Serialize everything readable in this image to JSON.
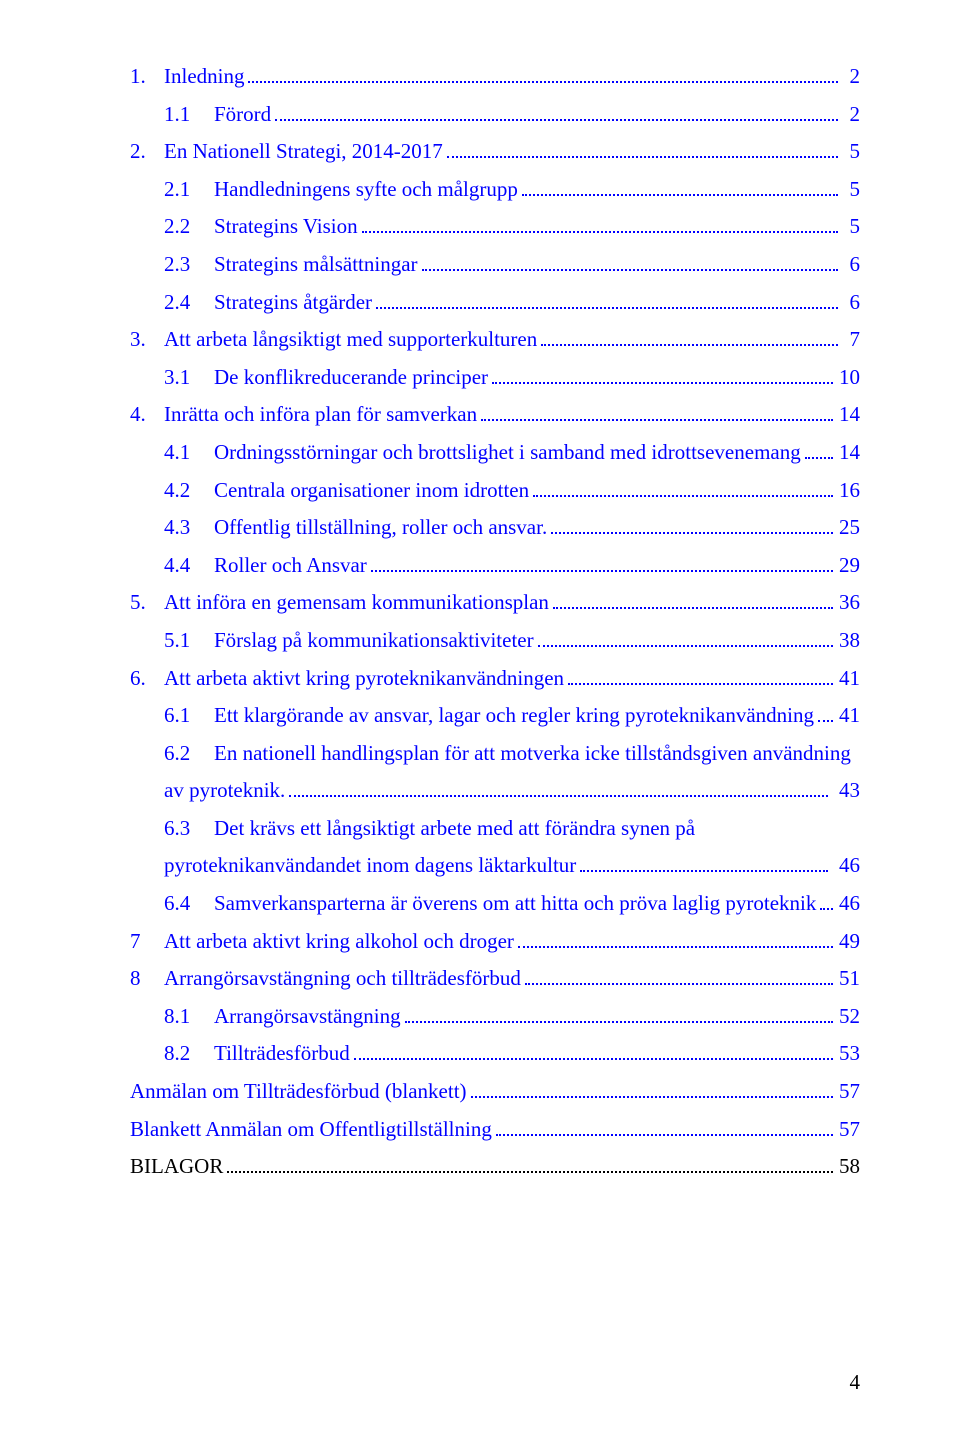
{
  "toc": [
    {
      "num": "1.",
      "label": "Inledning",
      "page": "2",
      "indent": 0,
      "link": true
    },
    {
      "num": "1.1",
      "label": "Förord",
      "page": "2",
      "indent": 1,
      "link": true
    },
    {
      "num": "2.",
      "label": "En Nationell Strategi, 2014-2017",
      "page": "5",
      "indent": 0,
      "link": true
    },
    {
      "num": "2.1",
      "label": "Handledningens syfte och målgrupp",
      "page": "5",
      "indent": 1,
      "link": true
    },
    {
      "num": "2.2",
      "label": "Strategins Vision",
      "page": "5",
      "indent": 1,
      "link": true
    },
    {
      "num": "2.3",
      "label": "Strategins målsättningar",
      "page": "6",
      "indent": 1,
      "link": true
    },
    {
      "num": "2.4",
      "label": "Strategins åtgärder",
      "page": "6",
      "indent": 1,
      "link": true
    },
    {
      "num": "3.",
      "label": "Att arbeta långsiktigt med supporterkulturen",
      "page": "7",
      "indent": 0,
      "link": true
    },
    {
      "num": "3.1",
      "label": "De konflikreducerande principer",
      "page": "10",
      "indent": 1,
      "link": true
    },
    {
      "num": "4.",
      "label": "Inrätta och införa plan för samverkan",
      "page": "14",
      "indent": 0,
      "link": true
    },
    {
      "num": "4.1",
      "label": "Ordningsstörningar och brottslighet i samband med idrottsevenemang",
      "page": "14",
      "indent": 1,
      "link": true
    },
    {
      "num": "4.2",
      "label": "Centrala organisationer inom idrotten",
      "page": "16",
      "indent": 1,
      "link": true
    },
    {
      "num": "4.3",
      "label": "Offentlig tillställning, roller och ansvar.",
      "page": "25",
      "indent": 1,
      "link": true
    },
    {
      "num": "4.4",
      "label": "Roller och Ansvar",
      "page": "29",
      "indent": 1,
      "link": true
    },
    {
      "num": "5.",
      "label": "Att införa en gemensam kommunikationsplan",
      "page": "36",
      "indent": 0,
      "link": true
    },
    {
      "num": "5.1",
      "label": "Förslag på kommunikationsaktiviteter",
      "page": "38",
      "indent": 1,
      "link": true
    },
    {
      "num": "6.",
      "label": "Att arbeta aktivt kring pyroteknikanvändningen",
      "page": "41",
      "indent": 0,
      "link": true
    },
    {
      "num": "6.1",
      "label": "Ett klargörande av ansvar, lagar och regler kring pyroteknikanvändning",
      "page": "41",
      "indent": 1,
      "link": true
    },
    {
      "num": "6.2",
      "label_line1": "En nationell handlingsplan för att motverka icke tillståndsgiven användning",
      "label_line2": "av pyroteknik.",
      "page": "43",
      "indent": 1,
      "link": true,
      "wrap": true
    },
    {
      "num": "6.3",
      "label_line1": "Det krävs ett långsiktigt arbete med att förändra synen på",
      "label_line2": "pyroteknikanvändandet inom dagens läktarkultur",
      "page": "46",
      "indent": 1,
      "link": true,
      "wrap": true
    },
    {
      "num": "6.4",
      "label": "Samverkansparterna är överens om att hitta och pröva laglig pyroteknik",
      "page": "46",
      "indent": 1,
      "link": true
    },
    {
      "num": "7",
      "label": "Att arbeta aktivt kring alkohol och droger",
      "page": "49",
      "indent": 0,
      "link": true
    },
    {
      "num": "8",
      "label": "Arrangörsavstängning och tillträdesförbud",
      "page": "51",
      "indent": 0,
      "link": true
    },
    {
      "num": "8.1",
      "label": "Arrangörsavstängning",
      "page": "52",
      "indent": 1,
      "link": true
    },
    {
      "num": "8.2",
      "label": "Tillträdesförbud",
      "page": "53",
      "indent": 1,
      "link": true
    },
    {
      "num": "",
      "label": "Anmälan om Tillträdesförbud (blankett)",
      "page": "57",
      "indent": -1,
      "link": true
    },
    {
      "num": "",
      "label": "Blankett Anmälan om Offentligtillställning",
      "page": "57",
      "indent": -1,
      "link": true
    },
    {
      "num": "",
      "label": "BILAGOR",
      "page": "58",
      "indent": -1,
      "link": false
    }
  ],
  "pageNumber": "4"
}
